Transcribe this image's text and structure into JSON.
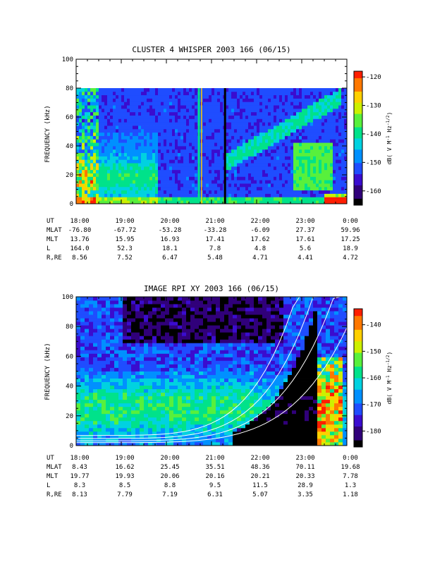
{
  "colors": {
    "colormap": [
      "#000000",
      "#30007a",
      "#3a0ccf",
      "#1f4dff",
      "#0090ff",
      "#00d2e0",
      "#00e28a",
      "#58f03c",
      "#cdf000",
      "#ffd000",
      "#ff7800",
      "#ff1e00"
    ],
    "background": "#ffffff",
    "axis": "#000000",
    "curve": "#ffffff"
  },
  "chart_data": [
    {
      "type": "heatmap",
      "title": "CLUSTER 4 WHISPER 2003 166 (06/15)",
      "ylabel": "FREQUENCY (kHz)",
      "ylim": [
        0,
        100
      ],
      "data_fmax": 80,
      "yticks": [
        "0",
        "20",
        "40",
        "60",
        "80",
        "100"
      ],
      "x_ut_hours": [
        18,
        19,
        20,
        21,
        22,
        23,
        24
      ],
      "colorbar": {
        "label_main": "dB( V M",
        "label_exp1": "-1",
        "label_hz": " Hz",
        "label_exp2": "-1/2",
        "label_end": ")",
        "range": [
          -165,
          -118
        ],
        "ticks": [
          "-160",
          "-150",
          "-140",
          "-130",
          "-120"
        ]
      },
      "ephemeris": {
        "labels": [
          "UT",
          "MLAT",
          "MLT",
          "L",
          "R,RE"
        ],
        "columns": [
          [
            "18:00",
            "-76.80",
            "13.76",
            "164.0",
            "8.56"
          ],
          [
            "19:00",
            "-67.72",
            "15.95",
            "52.3",
            "7.52"
          ],
          [
            "20:00",
            "-53.28",
            "16.93",
            "18.1",
            "6.47"
          ],
          [
            "21:00",
            "-33.28",
            "17.41",
            "7.8",
            "5.48"
          ],
          [
            "22:00",
            "-6.09",
            "17.62",
            "4.8",
            "4.71"
          ],
          [
            "23:00",
            "27.37",
            "17.61",
            "5.6",
            "4.41"
          ],
          [
            "0:00",
            "59.96",
            "17.25",
            "18.9",
            "4.72"
          ]
        ]
      }
    },
    {
      "type": "heatmap",
      "title": "IMAGE RPI XY 2003 166 (06/15)",
      "ylabel": "FREQUENCY (kHz)",
      "ylim": [
        0,
        100
      ],
      "data_fmax": 100,
      "yticks": [
        "0",
        "20",
        "40",
        "60",
        "80",
        "100"
      ],
      "x_ut_hours": [
        18,
        19,
        20,
        21,
        22,
        23,
        24
      ],
      "colorbar": {
        "label_main": "dB( V M",
        "label_exp1": "-1",
        "label_hz": " Hz",
        "label_exp2": "-1/2",
        "label_end": ")",
        "range": [
          -186,
          -134
        ],
        "ticks": [
          "-180",
          "-170",
          "-160",
          "-150",
          "-140"
        ]
      },
      "ephemeris": {
        "labels": [
          "UT",
          "MLAT",
          "MLT",
          "L",
          "R,RE"
        ],
        "columns": [
          [
            "18:00",
            "8.43",
            "19.77",
            "8.3",
            "8.13"
          ],
          [
            "19:00",
            "16.62",
            "19.93",
            "8.5",
            "7.79"
          ],
          [
            "20:00",
            "25.45",
            "20.06",
            "8.8",
            "7.19"
          ],
          [
            "21:00",
            "35.51",
            "20.16",
            "9.5",
            "6.31"
          ],
          [
            "22:00",
            "48.36",
            "20.21",
            "11.5",
            "5.07"
          ],
          [
            "23:00",
            "70.11",
            "20.33",
            "28.9",
            "3.35"
          ],
          [
            "0:00",
            "19.68",
            "7.78",
            "1.3",
            "1.18"
          ]
        ]
      }
    }
  ]
}
